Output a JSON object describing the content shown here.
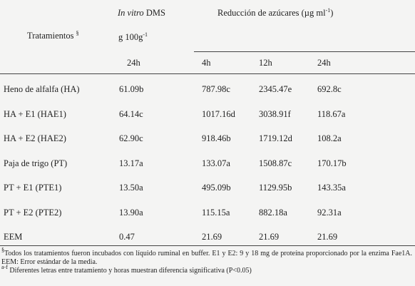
{
  "header": {
    "in_vitro_italic": "In vitro",
    "in_vitro_rest": "DMS",
    "unit": "g 100g",
    "unit_sup": "-1",
    "treatments": "Tratamientos",
    "treatments_sup": "§",
    "sugar_prefix": "Reducción de azúcares (µg ml",
    "sugar_sup": "-1",
    "sugar_suffix": ")",
    "times": [
      "24h",
      "4h",
      "12h",
      "24h"
    ]
  },
  "table": {
    "rows": [
      [
        "Heno de alfalfa (HA)",
        "61.09b",
        "787.98c",
        "2345.47e",
        "692.8c"
      ],
      [
        "HA + E1 (HAE1)",
        "64.14c",
        "1017.16d",
        "3038.91f",
        "118.67a"
      ],
      [
        "HA + E2 (HAE2)",
        "62.90c",
        "918.46b",
        "1719.12d",
        "108.2a"
      ],
      [
        "Paja de trigo (PT)",
        "13.17a",
        "133.07a",
        "1508.87c",
        "170.17b"
      ],
      [
        "PT + E1 (PTE1)",
        "13.50a",
        "495.09b",
        "1129.95b",
        "143.35a"
      ],
      [
        "PT + E2 (PTE2)",
        "13.90a",
        "115.15a",
        "882.18a",
        "92.31a"
      ],
      [
        "EEM",
        "0.47",
        "21.69",
        "21.69",
        "21.69"
      ]
    ]
  },
  "footnotes": {
    "first_mark": "§",
    "first": "Todos los tratamientos fueron incubados con líquido ruminal en buffer. E1 y E2: 9 y 18 mg de proteína proporcionado por la enzima Fae1A. EEM: Error estándar de la media.",
    "second_mark": "a-f",
    "second": "Diferentes letras entre tratamiento y horas muestran diferencia significativa (P<0.05)"
  }
}
